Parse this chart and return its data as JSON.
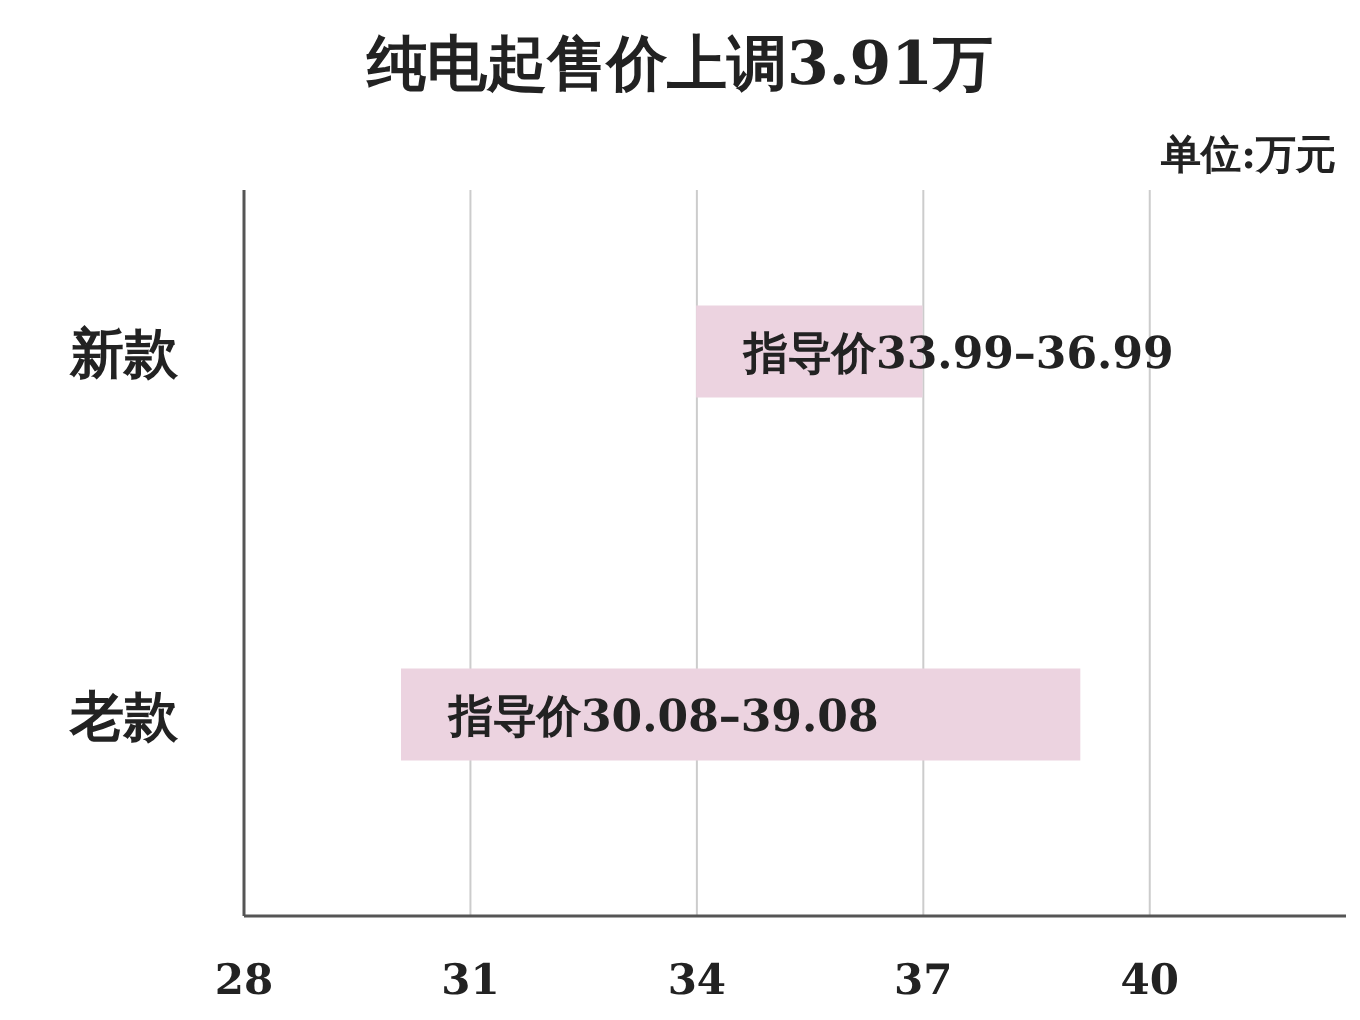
{
  "chart_data": {
    "type": "bar",
    "orientation": "horizontal",
    "title": "纯电起售价上调3.91万",
    "annotations": [
      "单位:万元"
    ],
    "categories": [
      "新款",
      "老款"
    ],
    "base": [
      33.99,
      30.08
    ],
    "values": [
      3.0,
      9.0
    ],
    "value_labels": [
      "指导价33.99–36.99",
      "指导价30.08–39.08"
    ],
    "color": "#ecd3e0",
    "xlim": [
      28,
      42.6
    ],
    "xticks": [
      28,
      31,
      34,
      37,
      40
    ],
    "grid": "x"
  }
}
